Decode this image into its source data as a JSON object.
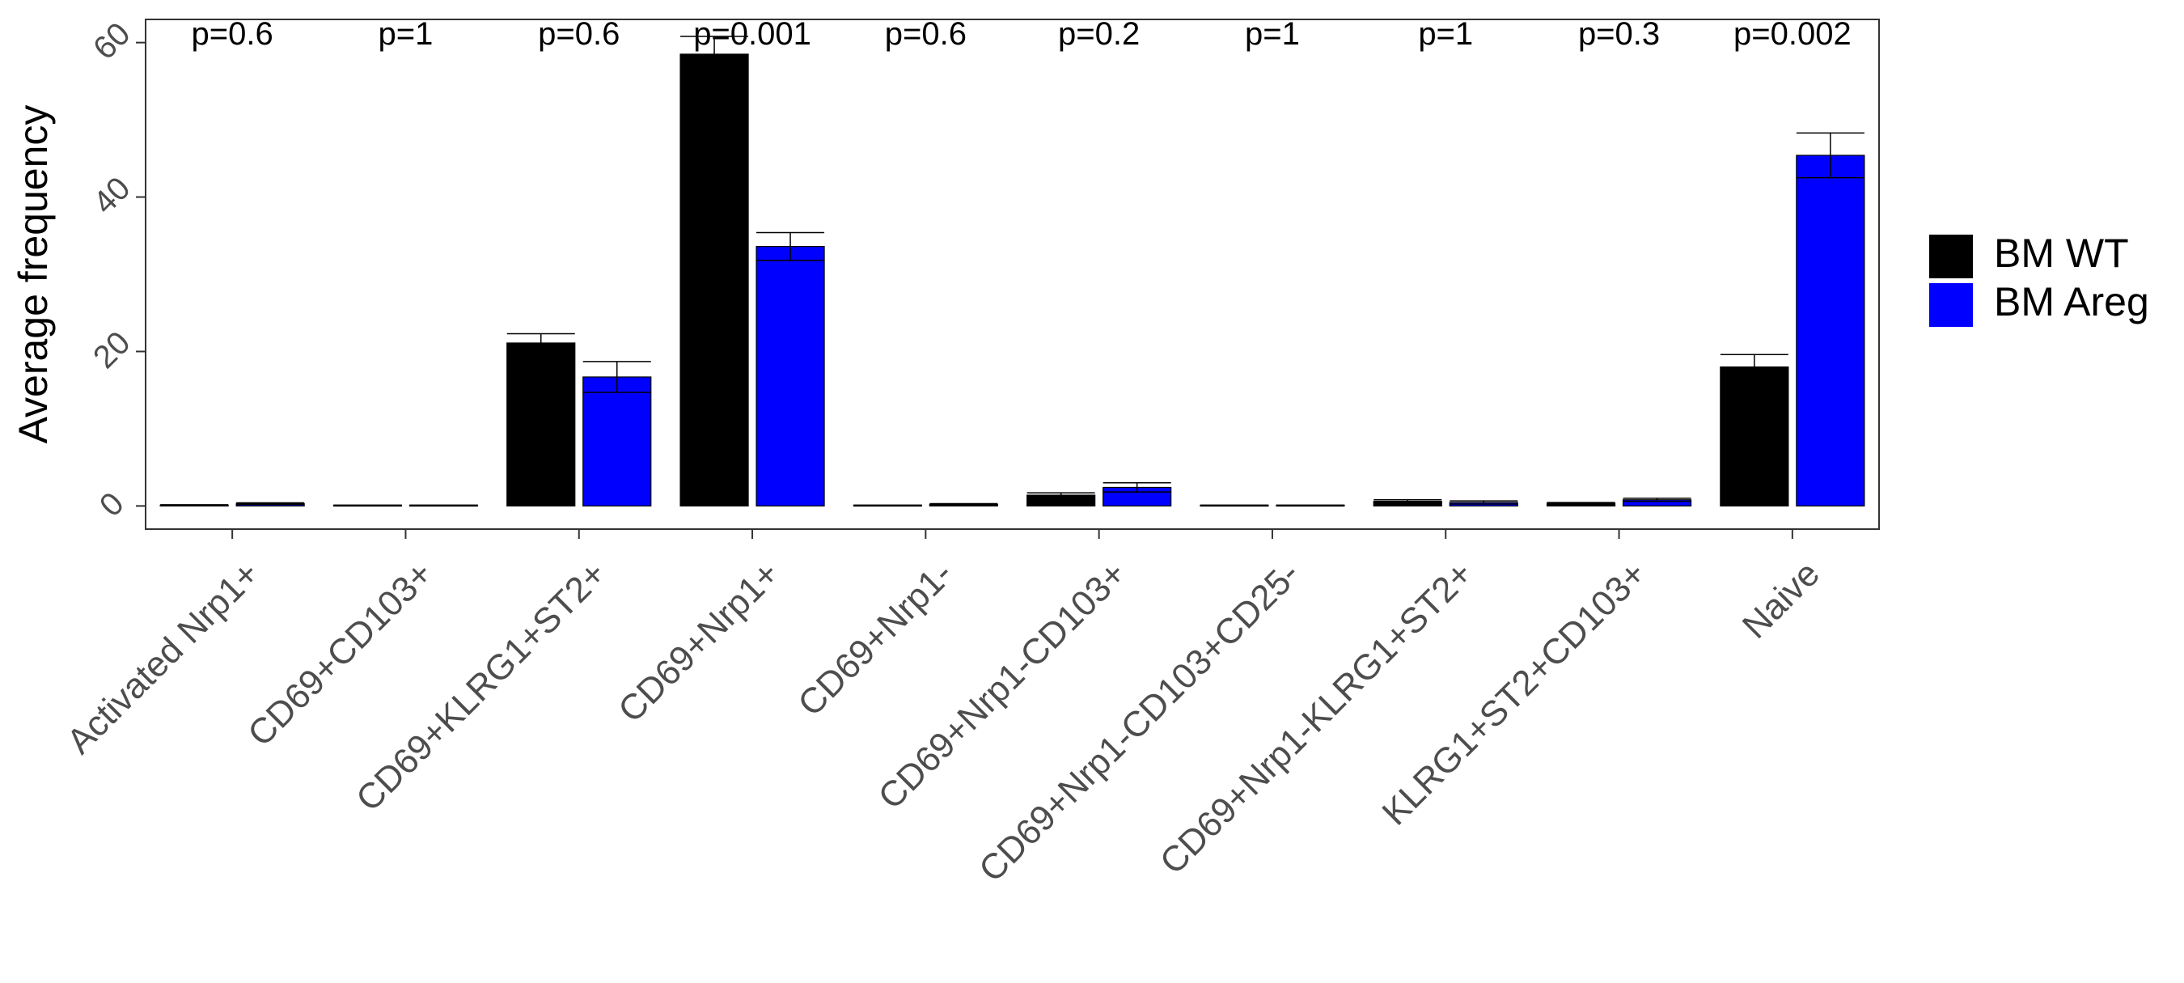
{
  "chart_data": {
    "type": "bar",
    "title": "",
    "xlabel": "",
    "ylabel": "Average frequency",
    "ylim": [
      -3,
      63
    ],
    "yticks": [
      0,
      20,
      40,
      60
    ],
    "grid": false,
    "legend_position": "right",
    "categories": [
      "Activated Nrp1+",
      "CD69+CD103+",
      "CD69+KLRG1+ST2+",
      "CD69+Nrp1+",
      "CD69+Nrp1-",
      "CD69+Nrp1-CD103+",
      "CD69+Nrp1-CD103+CD25-",
      "CD69+Nrp1-KLRG1+ST2+",
      "KLRG1+ST2+CD103+",
      "Naive"
    ],
    "series": [
      {
        "name": "BM WT",
        "color": "#000000",
        "values": [
          0.1,
          0.05,
          21.1,
          58.5,
          0.05,
          1.4,
          0.05,
          0.6,
          0.35,
          18.0
        ],
        "errors": [
          0.05,
          0.05,
          1.2,
          2.3,
          0.05,
          0.3,
          0.05,
          0.2,
          0.1,
          1.6
        ]
      },
      {
        "name": "BM Areg",
        "color": "#0000ff",
        "values": [
          0.3,
          0.05,
          16.7,
          33.6,
          0.2,
          2.4,
          0.05,
          0.45,
          0.8,
          45.4
        ],
        "errors": [
          0.1,
          0.05,
          2.0,
          1.8,
          0.1,
          0.6,
          0.05,
          0.2,
          0.2,
          2.9
        ]
      }
    ],
    "annotations": [
      "p=0.6",
      "p=1",
      "p=0.6",
      "p=0.001",
      "p=0.6",
      "p=0.2",
      "p=1",
      "p=1",
      "p=0.3",
      "p=0.002"
    ]
  }
}
